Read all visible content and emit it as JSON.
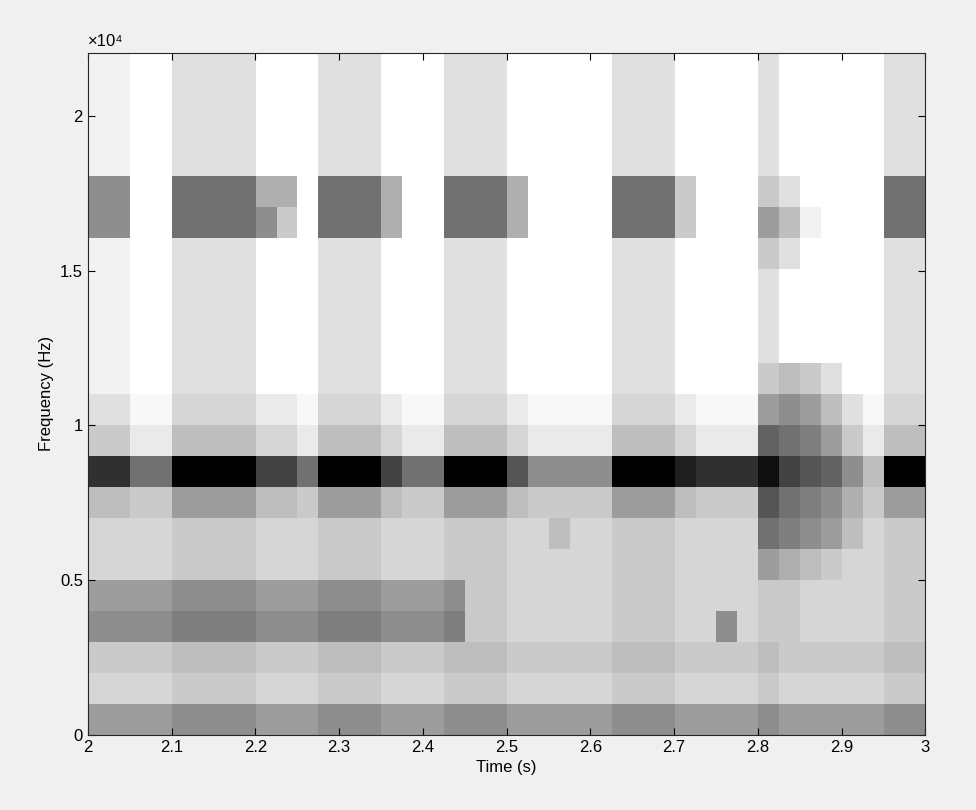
{
  "chart_data": {
    "type": "heatmap",
    "xlabel": "Time (s)",
    "ylabel": "Frequency (Hz)",
    "y_multiplier": "×10⁴",
    "xlim": [
      2,
      3
    ],
    "xticks": [
      2,
      2.1,
      2.2,
      2.3,
      2.4,
      2.5,
      2.6,
      2.7,
      2.8,
      2.9,
      3
    ],
    "ylim": [
      0,
      2.205
    ],
    "yticks": [
      0,
      0.5,
      1,
      1.5,
      2
    ],
    "color": "Greys",
    "cells": [
      [
        0.45,
        0.45,
        0.45,
        0.45,
        0.5,
        0.5,
        0.5,
        0.5,
        0.45,
        0.45,
        0.45,
        0.5,
        0.5,
        0.5,
        0.45,
        0.45,
        0.45,
        0.5,
        0.5,
        0.5,
        0.45,
        0.45,
        0.45,
        0.45,
        0.45,
        0.5,
        0.5,
        0.5,
        0.45,
        0.45,
        0.45,
        0.45,
        0.5,
        0.45,
        0.45,
        0.45,
        0.45,
        0.45,
        0.5,
        0.5
      ],
      [
        0.25,
        0.25,
        0.25,
        0.25,
        0.3,
        0.3,
        0.3,
        0.3,
        0.25,
        0.25,
        0.25,
        0.3,
        0.3,
        0.3,
        0.25,
        0.25,
        0.25,
        0.3,
        0.3,
        0.3,
        0.25,
        0.25,
        0.25,
        0.25,
        0.25,
        0.3,
        0.3,
        0.3,
        0.25,
        0.25,
        0.25,
        0.25,
        0.3,
        0.25,
        0.25,
        0.25,
        0.25,
        0.25,
        0.3,
        0.3
      ],
      [
        0.3,
        0.3,
        0.3,
        0.3,
        0.35,
        0.35,
        0.35,
        0.35,
        0.3,
        0.3,
        0.3,
        0.35,
        0.35,
        0.35,
        0.3,
        0.3,
        0.3,
        0.35,
        0.35,
        0.35,
        0.3,
        0.3,
        0.3,
        0.3,
        0.3,
        0.35,
        0.35,
        0.35,
        0.3,
        0.3,
        0.3,
        0.3,
        0.35,
        0.3,
        0.3,
        0.3,
        0.3,
        0.3,
        0.35,
        0.35
      ],
      [
        0.5,
        0.5,
        0.5,
        0.5,
        0.55,
        0.55,
        0.55,
        0.55,
        0.5,
        0.5,
        0.5,
        0.55,
        0.55,
        0.55,
        0.5,
        0.5,
        0.5,
        0.55,
        0.3,
        0.3,
        0.25,
        0.25,
        0.25,
        0.25,
        0.25,
        0.3,
        0.3,
        0.3,
        0.25,
        0.25,
        0.5,
        0.25,
        0.3,
        0.3,
        0.25,
        0.25,
        0.25,
        0.25,
        0.3,
        0.3
      ],
      [
        0.45,
        0.45,
        0.45,
        0.45,
        0.5,
        0.5,
        0.5,
        0.5,
        0.45,
        0.45,
        0.45,
        0.5,
        0.5,
        0.5,
        0.45,
        0.45,
        0.45,
        0.5,
        0.3,
        0.3,
        0.25,
        0.25,
        0.25,
        0.25,
        0.25,
        0.3,
        0.3,
        0.3,
        0.25,
        0.25,
        0.25,
        0.25,
        0.3,
        0.3,
        0.25,
        0.25,
        0.25,
        0.25,
        0.3,
        0.3
      ],
      [
        0.25,
        0.25,
        0.25,
        0.25,
        0.3,
        0.3,
        0.3,
        0.3,
        0.25,
        0.25,
        0.25,
        0.3,
        0.3,
        0.3,
        0.25,
        0.25,
        0.25,
        0.3,
        0.3,
        0.3,
        0.25,
        0.25,
        0.25,
        0.25,
        0.25,
        0.3,
        0.3,
        0.3,
        0.25,
        0.25,
        0.25,
        0.25,
        0.45,
        0.4,
        0.35,
        0.3,
        0.25,
        0.25,
        0.3,
        0.3
      ],
      [
        0.25,
        0.25,
        0.25,
        0.25,
        0.3,
        0.3,
        0.3,
        0.3,
        0.25,
        0.25,
        0.25,
        0.3,
        0.3,
        0.3,
        0.25,
        0.25,
        0.25,
        0.3,
        0.3,
        0.3,
        0.25,
        0.25,
        0.35,
        0.25,
        0.25,
        0.3,
        0.3,
        0.3,
        0.25,
        0.25,
        0.25,
        0.25,
        0.6,
        0.55,
        0.5,
        0.45,
        0.35,
        0.25,
        0.3,
        0.3
      ],
      [
        0.35,
        0.35,
        0.3,
        0.3,
        0.45,
        0.45,
        0.45,
        0.45,
        0.35,
        0.35,
        0.3,
        0.45,
        0.45,
        0.45,
        0.35,
        0.3,
        0.3,
        0.45,
        0.45,
        0.45,
        0.35,
        0.3,
        0.3,
        0.3,
        0.3,
        0.45,
        0.45,
        0.45,
        0.35,
        0.3,
        0.3,
        0.3,
        0.7,
        0.6,
        0.55,
        0.5,
        0.4,
        0.3,
        0.45,
        0.45
      ],
      [
        0.8,
        0.8,
        0.6,
        0.6,
        0.95,
        0.95,
        0.95,
        0.95,
        0.75,
        0.75,
        0.6,
        0.95,
        0.95,
        0.95,
        0.75,
        0.6,
        0.6,
        0.95,
        0.95,
        0.95,
        0.7,
        0.5,
        0.5,
        0.5,
        0.5,
        0.95,
        0.95,
        0.95,
        0.85,
        0.8,
        0.8,
        0.8,
        0.9,
        0.75,
        0.7,
        0.65,
        0.5,
        0.35,
        0.95,
        0.95
      ],
      [
        0.3,
        0.3,
        0.15,
        0.15,
        0.35,
        0.35,
        0.35,
        0.35,
        0.25,
        0.25,
        0.15,
        0.35,
        0.35,
        0.35,
        0.25,
        0.15,
        0.15,
        0.35,
        0.35,
        0.35,
        0.25,
        0.15,
        0.15,
        0.15,
        0.15,
        0.35,
        0.35,
        0.35,
        0.25,
        0.15,
        0.15,
        0.15,
        0.65,
        0.6,
        0.55,
        0.45,
        0.3,
        0.15,
        0.35,
        0.35
      ],
      [
        0.2,
        0.2,
        0.05,
        0.05,
        0.25,
        0.25,
        0.25,
        0.25,
        0.15,
        0.15,
        0.05,
        0.25,
        0.25,
        0.25,
        0.15,
        0.05,
        0.05,
        0.25,
        0.25,
        0.25,
        0.15,
        0.05,
        0.05,
        0.05,
        0.05,
        0.25,
        0.25,
        0.25,
        0.15,
        0.05,
        0.05,
        0.05,
        0.45,
        0.5,
        0.45,
        0.35,
        0.2,
        0.05,
        0.25,
        0.25
      ],
      [
        0.1,
        0.1,
        0,
        0,
        0.2,
        0.2,
        0.2,
        0.2,
        0,
        0,
        0,
        0.2,
        0.2,
        0.2,
        0,
        0,
        0,
        0.2,
        0.2,
        0.2,
        0,
        0,
        0,
        0,
        0,
        0.2,
        0.2,
        0.2,
        0,
        0,
        0,
        0,
        0.3,
        0.35,
        0.3,
        0.2,
        0,
        0,
        0.2,
        0.2
      ],
      [
        0.1,
        0.1,
        0,
        0,
        0.2,
        0.2,
        0.2,
        0.2,
        0,
        0,
        0,
        0.2,
        0.2,
        0.2,
        0,
        0,
        0,
        0.2,
        0.2,
        0.2,
        0,
        0,
        0,
        0,
        0,
        0.2,
        0.2,
        0.2,
        0,
        0,
        0,
        0,
        0.2,
        0,
        0,
        0,
        0,
        0,
        0.2,
        0.2
      ],
      [
        0.1,
        0.1,
        0,
        0,
        0.2,
        0.2,
        0.2,
        0.2,
        0,
        0,
        0,
        0.2,
        0.2,
        0.2,
        0,
        0,
        0,
        0.2,
        0.2,
        0.2,
        0,
        0,
        0,
        0,
        0,
        0.2,
        0.2,
        0.2,
        0,
        0,
        0,
        0,
        0.2,
        0,
        0,
        0,
        0,
        0,
        0.2,
        0.2
      ],
      [
        0.1,
        0.1,
        0,
        0,
        0.2,
        0.2,
        0.2,
        0.2,
        0,
        0,
        0,
        0.2,
        0.2,
        0.2,
        0,
        0,
        0,
        0.2,
        0.2,
        0.2,
        0,
        0,
        0,
        0,
        0,
        0.2,
        0.2,
        0.2,
        0,
        0,
        0,
        0,
        0.2,
        0,
        0,
        0,
        0,
        0,
        0.2,
        0.2
      ],
      [
        0.1,
        0.1,
        0,
        0,
        0.2,
        0.2,
        0.2,
        0.2,
        0,
        0,
        0,
        0.2,
        0.2,
        0.2,
        0,
        0,
        0,
        0.2,
        0.2,
        0.2,
        0,
        0,
        0,
        0,
        0,
        0.2,
        0.2,
        0.2,
        0,
        0,
        0,
        0,
        0.3,
        0.2,
        0,
        0,
        0,
        0,
        0.2,
        0.2
      ],
      [
        0.5,
        0.5,
        0,
        0,
        0.6,
        0.6,
        0.6,
        0.6,
        0.5,
        0.3,
        0,
        0.6,
        0.6,
        0.6,
        0.4,
        0,
        0,
        0.6,
        0.6,
        0.6,
        0.4,
        0,
        0,
        0,
        0,
        0.6,
        0.6,
        0.6,
        0.3,
        0,
        0,
        0,
        0.45,
        0.35,
        0.1,
        0,
        0,
        0,
        0.6,
        0.6
      ],
      [
        0.5,
        0.5,
        0,
        0,
        0.6,
        0.6,
        0.6,
        0.6,
        0.4,
        0.4,
        0,
        0.6,
        0.6,
        0.6,
        0.4,
        0,
        0,
        0.6,
        0.6,
        0.6,
        0.4,
        0,
        0,
        0,
        0,
        0.6,
        0.6,
        0.6,
        0.3,
        0,
        0,
        0,
        0.3,
        0.2,
        0,
        0,
        0,
        0,
        0.6,
        0.6
      ],
      [
        0.1,
        0.1,
        0,
        0,
        0.2,
        0.2,
        0.2,
        0.2,
        0,
        0,
        0,
        0.2,
        0.2,
        0.2,
        0,
        0,
        0,
        0.2,
        0.2,
        0.2,
        0,
        0,
        0,
        0,
        0,
        0.2,
        0.2,
        0.2,
        0,
        0,
        0,
        0,
        0.2,
        0,
        0,
        0,
        0,
        0,
        0.2,
        0.2
      ],
      [
        0.1,
        0.1,
        0,
        0,
        0.2,
        0.2,
        0.2,
        0.2,
        0,
        0,
        0,
        0.2,
        0.2,
        0.2,
        0,
        0,
        0,
        0.2,
        0.2,
        0.2,
        0,
        0,
        0,
        0,
        0,
        0.2,
        0.2,
        0.2,
        0,
        0,
        0,
        0,
        0.2,
        0,
        0,
        0,
        0,
        0,
        0.2,
        0.2
      ],
      [
        0.1,
        0.1,
        0,
        0,
        0.2,
        0.2,
        0.2,
        0.2,
        0,
        0,
        0,
        0.2,
        0.2,
        0.2,
        0,
        0,
        0,
        0.2,
        0.2,
        0.2,
        0,
        0,
        0,
        0,
        0,
        0.2,
        0.2,
        0.2,
        0,
        0,
        0,
        0,
        0.2,
        0,
        0,
        0,
        0,
        0,
        0.2,
        0.2
      ],
      [
        0.1,
        0.1,
        0,
        0,
        0.2,
        0.2,
        0.2,
        0.2,
        0,
        0,
        0,
        0.2,
        0.2,
        0.2,
        0,
        0,
        0,
        0.2,
        0.2,
        0.2,
        0,
        0,
        0,
        0,
        0,
        0.2,
        0.2,
        0.2,
        0,
        0,
        0,
        0,
        0.2,
        0,
        0,
        0,
        0,
        0,
        0.2,
        0.2
      ]
    ]
  }
}
